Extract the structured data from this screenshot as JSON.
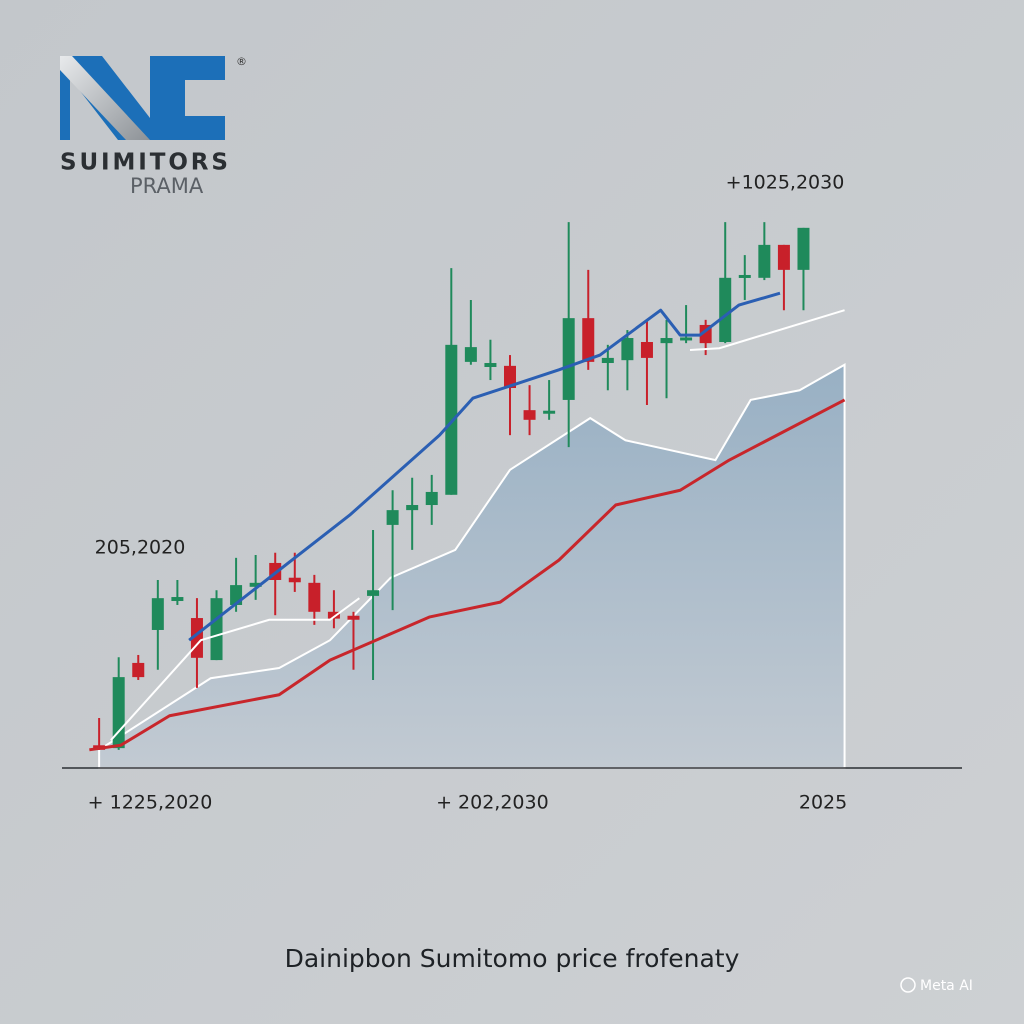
{
  "logo": {
    "text": "SUIMITORS",
    "subtext": "PRAMA",
    "mark": "®"
  },
  "watermark": "Meta AI",
  "chart_data": {
    "type": "candlestick",
    "title": "Dainipbon Sumitomo price frofenaty",
    "annotations": [
      "205,2020",
      "+1025,2030"
    ],
    "xlim": [
      0,
      46
    ],
    "ylim": [
      0,
      100
    ],
    "xticks": [
      {
        "value": 4.6,
        "label": "+ 1225,2020"
      },
      {
        "value": 22.1,
        "label": "+ 202,2030"
      },
      {
        "value": 39.0,
        "label": "2025"
      }
    ],
    "up_color": "#1f8a5b",
    "down_color": "#c8202a",
    "x": [
      2,
      3,
      4,
      5,
      6,
      7,
      8,
      9,
      10,
      11,
      12,
      13,
      14,
      15,
      16,
      17,
      18,
      19,
      20,
      21,
      22,
      23,
      24,
      25,
      26,
      27,
      28,
      29,
      30,
      31,
      32,
      33,
      34,
      35,
      36,
      37,
      38
    ],
    "open": [
      4.0,
      3.5,
      18.5,
      24.3,
      29.4,
      26.4,
      19.0,
      28.7,
      31.9,
      36.1,
      33.5,
      32.6,
      27.5,
      26.8,
      30.3,
      42.8,
      45.4,
      46.3,
      48.1,
      71.5,
      70.6,
      70.8,
      63.0,
      62.5,
      64.8,
      79.2,
      71.3,
      71.8,
      75.0,
      74.8,
      75.4,
      78.0,
      75.0,
      86.3,
      86.3,
      92.1,
      87.7
    ],
    "high": [
      8.8,
      19.5,
      19.9,
      33.1,
      33.1,
      29.9,
      31.3,
      37.0,
      37.5,
      37.9,
      37.9,
      34.0,
      31.3,
      27.5,
      41.9,
      48.9,
      51.1,
      51.6,
      88.0,
      82.4,
      75.4,
      72.7,
      67.4,
      68.3,
      96.1,
      87.7,
      74.5,
      77.1,
      78.9,
      78.9,
      81.5,
      78.9,
      96.1,
      90.3,
      96.1,
      92.1,
      95.1
    ],
    "low": [
      3.2,
      3.2,
      15.5,
      17.3,
      28.7,
      14.1,
      19.0,
      27.5,
      29.6,
      26.9,
      31.0,
      25.2,
      24.6,
      17.3,
      15.5,
      27.8,
      38.4,
      42.8,
      48.1,
      71.0,
      68.3,
      58.6,
      58.6,
      61.3,
      56.5,
      70.1,
      66.5,
      66.5,
      63.9,
      65.1,
      74.8,
      72.7,
      74.8,
      82.4,
      85.9,
      80.6,
      80.6
    ],
    "close": [
      3.2,
      16.0,
      16.0,
      29.9,
      30.1,
      19.4,
      29.9,
      32.2,
      32.6,
      33.1,
      32.7,
      27.5,
      26.3,
      26.1,
      31.3,
      45.4,
      46.3,
      48.6,
      74.5,
      74.1,
      71.3,
      66.9,
      61.3,
      62.9,
      79.2,
      71.5,
      72.2,
      75.7,
      72.2,
      75.7,
      75.8,
      74.8,
      86.3,
      86.8,
      92.1,
      87.7,
      95.1
    ],
    "series": [
      {
        "type": "area",
        "color": "#a3b8ca",
        "x": [
          2.0,
          7.7,
          11.2,
          13.8,
          16.9,
          20.2,
          23.0,
          27.1,
          28.9,
          33.5,
          35.3,
          37.8,
          40.1
        ],
        "values": [
          3.2,
          15.8,
          17.6,
          22.5,
          33.5,
          38.4,
          52.5,
          61.6,
          57.7,
          54.2,
          64.8,
          66.5,
          71.0
        ]
      },
      {
        "type": "line",
        "color": "#ffffff",
        "x": [
          2.6,
          7.2,
          10.7,
          13.8,
          15.3,
          null,
          32.2,
          33.7,
          40.1
        ],
        "values": [
          4.9,
          22.5,
          26.1,
          26.1,
          29.9,
          null,
          73.6,
          73.9,
          80.6
        ]
      },
      {
        "type": "line",
        "color": "#c8262b",
        "x": [
          1.5,
          3.1,
          5.6,
          11.2,
          13.8,
          18.9,
          22.5,
          25.5,
          28.4,
          31.7,
          34.2,
          40.1
        ],
        "values": [
          3.2,
          4.0,
          9.2,
          12.9,
          19.0,
          26.6,
          29.2,
          36.6,
          46.3,
          48.9,
          54.2,
          64.8
        ]
      },
      {
        "type": "line",
        "color": "#2b5fb3",
        "x": [
          6.6,
          14.8,
          19.4,
          21.1,
          25.5,
          27.6,
          30.7,
          31.7,
          32.7,
          34.7,
          36.8
        ],
        "values": [
          22.5,
          44.5,
          58.6,
          65.1,
          70.1,
          72.7,
          80.6,
          76.2,
          76.2,
          81.5,
          83.6
        ]
      }
    ]
  }
}
